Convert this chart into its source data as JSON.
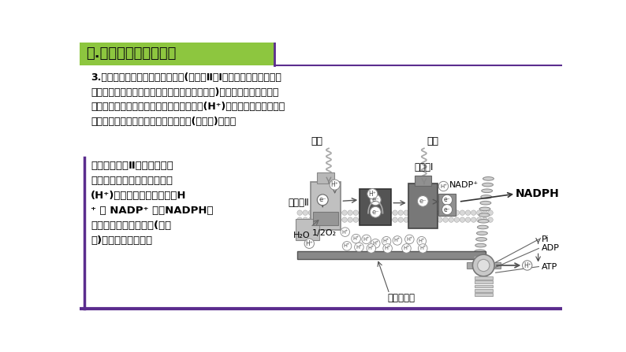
{
  "title": "一.光系统及电子传递链",
  "title_bg": "#8DC63F",
  "title_text_color": "#111111",
  "bg_color": "#FFFFFF",
  "border_color": "#5B2D8E",
  "main_text_1": "3.电子传递过程是高电势到低电势(光系统Ⅱ和Ⅰ中的电子传递由于光能\n的作用，从而逆电势传递，这是一个吸能的过程)，因此，电子传递过程\n中释放能量，质体醌利用这部分能量将质子(H⁺)逆浓度从类囊体的基质\n侧泵入到囊腔侧，从而建立了质子浓度(电化学)梯度。",
  "main_text_2": "当然，光系统Ⅱ在类囊体的囊\n腔侧进行的水的光解产生质子\n(H⁺)以及在类囊体的基质侧H\n⁺ 和 NADP⁺ 形成NADPH的\n过程，为建立质子浓度(电化\n学)梯度也有所贡献。",
  "label_guangneng": "光能",
  "label_psII": "光系统Ⅱ",
  "label_psI": "光系统Ⅰ",
  "label_nadp": "NADP⁺",
  "label_nadph": "NADPH",
  "label_h2o": "H₂O",
  "label_o2": "1/2O₂",
  "label_pi": "Pi",
  "label_adp": "ADP",
  "label_atp": "ATP",
  "label_thylakoid": "类囊体薄膜",
  "label_e": "e⁻",
  "label_hplus": "H⁺",
  "title_bar_width": 320,
  "title_bar_height": 38,
  "fig_w": 7.94,
  "fig_h": 4.47,
  "dpi": 100
}
